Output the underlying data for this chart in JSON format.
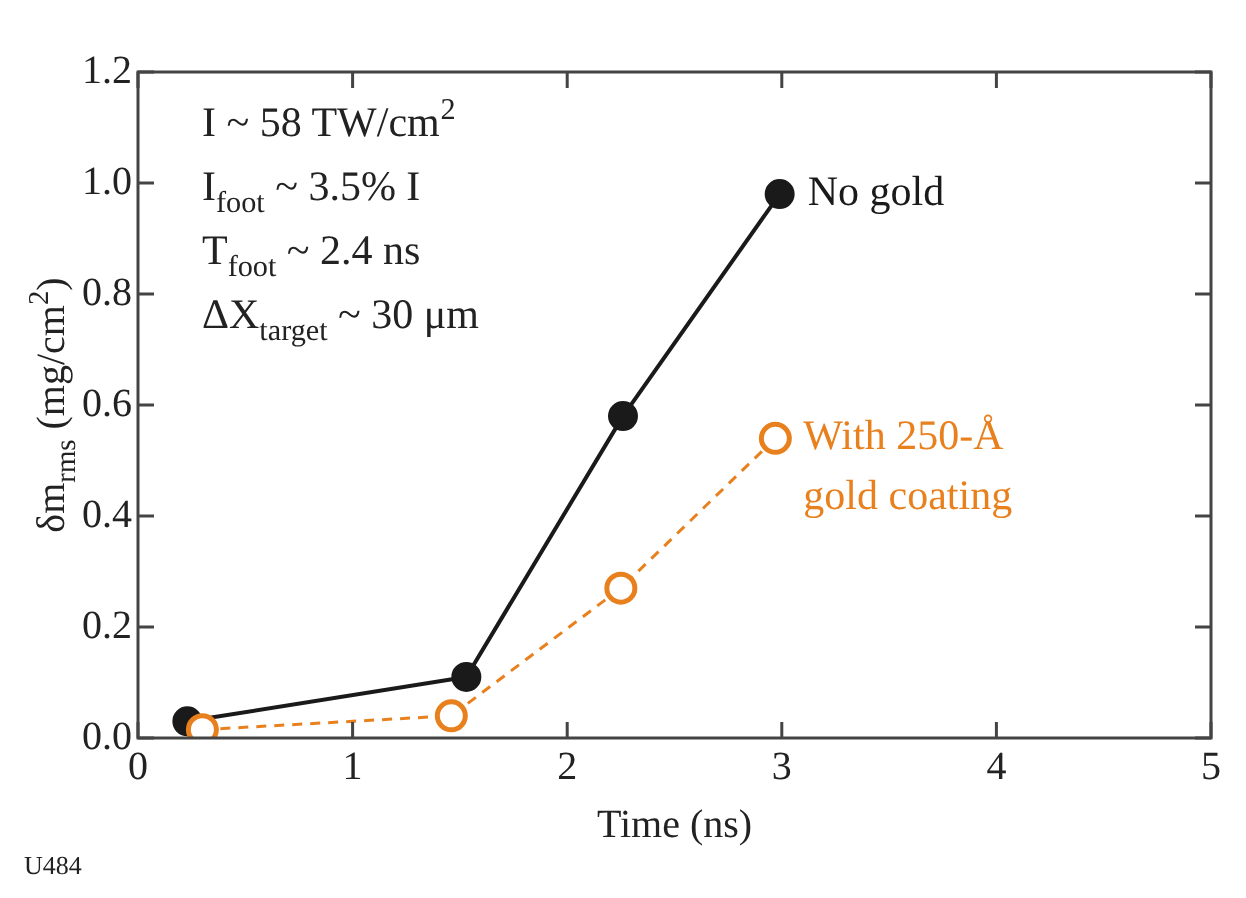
{
  "chart_data": {
    "type": "line",
    "xlabel": "Time (ns)",
    "ylabel": "δm$_{rms}$ (mg/cm$^{2}$)",
    "xlim": [
      0,
      5
    ],
    "xticks": [
      0,
      1,
      2,
      3,
      4,
      5
    ],
    "ylim": [
      0,
      1.2
    ],
    "yticks": [
      {
        "value": 0,
        "label": "0.0"
      },
      {
        "value": 0.2,
        "label": "0.2"
      },
      {
        "value": 0.4,
        "label": "0.4"
      },
      {
        "value": 0.6,
        "label": "0.6"
      },
      {
        "value": 0.8,
        "label": "0.8"
      },
      {
        "value": 1,
        "label": "1.0"
      },
      {
        "value": 1.2,
        "label": "1.2"
      }
    ],
    "marker": "circle",
    "legend": false,
    "series": [
      {
        "name": "No gold",
        "color": "#1a1a1a",
        "line_style": "solid",
        "x": [
          0.23,
          1.53,
          2.26,
          2.99
        ],
        "values": [
          0.03,
          0.11,
          0.58,
          0.98
        ]
      },
      {
        "name": "With 250-Å gold coating",
        "color": "#e8801e",
        "line_style": "dashed",
        "x": [
          0.3,
          1.46,
          2.25,
          2.97
        ],
        "values": [
          0.015,
          0.04,
          0.27,
          0.54
        ]
      }
    ],
    "annotations": [
      "I ~ 58 TW/cm$^{2}$",
      "I$_{foot}$ ~ 3.5% I",
      "T$_{foot}$ ~ 2.4 ns",
      "ΔX$_{target}$ ~ 30 μm",
      "U484"
    ]
  }
}
